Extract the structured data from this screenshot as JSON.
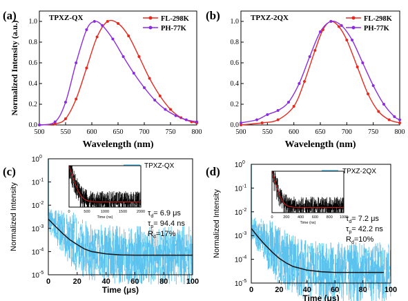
{
  "panels": {
    "a": {
      "tag": "(a)"
    },
    "b": {
      "tag": "(b)"
    },
    "c": {
      "tag": "(c)"
    },
    "d": {
      "tag": "(d)"
    }
  },
  "colors": {
    "fl": "#e8281e",
    "ph": "#8a2be2",
    "decay": "#5cc2ee",
    "fit": "#111111",
    "inset_fit": "#e02020"
  },
  "chart_data": [
    {
      "id": "a",
      "type": "line",
      "title": "TPXZ-QX",
      "xlabel": "Wavelength (nm)",
      "ylabel": "Normalized Intensity (a.u.)",
      "xlim": [
        500,
        800
      ],
      "ylim": [
        0,
        1.1
      ],
      "xticks": [
        "500",
        "550",
        "600",
        "650",
        "700",
        "750",
        "800"
      ],
      "yticks": [
        "0.0",
        "0.2",
        "0.4",
        "0.6",
        "0.8",
        "1.0"
      ],
      "legend_position": "top-right",
      "series": [
        {
          "name": "FL-298K",
          "x": [
            500,
            530,
            550,
            570,
            590,
            610,
            630,
            650,
            670,
            690,
            710,
            730,
            750,
            770,
            790,
            800
          ],
          "values": [
            0.0,
            0.01,
            0.06,
            0.25,
            0.55,
            0.85,
            1.0,
            0.98,
            0.86,
            0.66,
            0.45,
            0.28,
            0.15,
            0.07,
            0.03,
            0.02
          ]
        },
        {
          "name": "PH-77K",
          "x": [
            500,
            530,
            550,
            570,
            590,
            605,
            620,
            640,
            660,
            680,
            700,
            720,
            740,
            760,
            780,
            800
          ],
          "values": [
            0.0,
            0.03,
            0.22,
            0.6,
            0.92,
            1.0,
            0.96,
            0.83,
            0.66,
            0.5,
            0.36,
            0.24,
            0.15,
            0.09,
            0.05,
            0.03
          ]
        }
      ]
    },
    {
      "id": "b",
      "type": "line",
      "title": "TPXZ-2QX",
      "xlabel": "Wavelength (nm)",
      "ylabel": "",
      "xlim": [
        500,
        800
      ],
      "ylim": [
        0,
        1.1
      ],
      "xticks": [
        "500",
        "550",
        "600",
        "650",
        "700",
        "750",
        "800"
      ],
      "yticks": [
        "0.0",
        "0.2",
        "0.4",
        "0.6",
        "0.8",
        "1.0"
      ],
      "legend_position": "top-right",
      "series": [
        {
          "name": "FL-298K",
          "x": [
            500,
            540,
            570,
            600,
            620,
            640,
            655,
            670,
            685,
            700,
            720,
            740,
            760,
            780,
            800
          ],
          "values": [
            0.0,
            0.02,
            0.05,
            0.18,
            0.42,
            0.72,
            0.92,
            1.0,
            0.95,
            0.82,
            0.56,
            0.3,
            0.13,
            0.05,
            0.02
          ]
        },
        {
          "name": "PH-77K",
          "x": [
            500,
            530,
            550,
            570,
            590,
            610,
            630,
            650,
            670,
            690,
            710,
            730,
            750,
            770,
            790,
            800
          ],
          "values": [
            0.02,
            0.05,
            0.1,
            0.14,
            0.22,
            0.4,
            0.66,
            0.9,
            1.0,
            0.96,
            0.82,
            0.6,
            0.38,
            0.2,
            0.08,
            0.05
          ]
        }
      ]
    },
    {
      "id": "c",
      "type": "line",
      "title": "",
      "xlabel": "Time (μs)",
      "ylabel": "Normalized Intensity",
      "xlim": [
        0,
        100
      ],
      "ylog": true,
      "ylim_exp": [
        -5,
        0
      ],
      "xticks": [
        "0",
        "20",
        "40",
        "60",
        "80",
        "100"
      ],
      "yticks": [
        "10",
        "10",
        "10",
        "10",
        "10",
        "10"
      ],
      "ytick_exps": [
        "-5",
        "-4",
        "-3",
        "-2",
        "-1",
        "0"
      ],
      "legend_position": "top-right",
      "series": [
        {
          "name": "TPXZ-QX",
          "decay": {
            "y0": 0.0025,
            "tau": 6.9,
            "floor": 7e-05
          }
        }
      ],
      "fit": {
        "x": [
          0,
          5,
          10,
          15,
          20,
          25,
          30,
          40,
          50,
          60,
          80,
          100
        ],
        "values": [
          0.0025,
          0.0012,
          0.0006,
          0.00032,
          0.0002,
          0.00013,
          0.0001,
          8e-05,
          7.2e-05,
          7e-05,
          7e-05,
          7e-05
        ]
      },
      "annotation": {
        "tau_d": "= 6.9 μs",
        "tau_p": "= 94.4 ns",
        "r_d": "=17%"
      },
      "inset": {
        "xlabel": "Time (ns)",
        "xticks": [
          "0",
          "500",
          "1000",
          "1500",
          "2000"
        ],
        "xlim": [
          0,
          2000
        ],
        "tau_ns": 94.4
      }
    },
    {
      "id": "d",
      "type": "line",
      "title": "",
      "xlabel": "Time (μs)",
      "ylabel": "Normalized Intensity",
      "xlim": [
        0,
        100
      ],
      "ylog": true,
      "ylim_exp": [
        -5,
        0
      ],
      "xticks": [
        "0",
        "20",
        "40",
        "60",
        "80",
        "100"
      ],
      "yticks": [
        "10",
        "10",
        "10",
        "10",
        "10",
        "10"
      ],
      "ytick_exps": [
        "-5",
        "-4",
        "-3",
        "-2",
        "-1",
        "0"
      ],
      "legend_position": "top-right",
      "series": [
        {
          "name": "TPXZ-2QX",
          "decay": {
            "y0": 0.002,
            "tau": 7.2,
            "floor": 2.8e-05
          }
        }
      ],
      "fit": {
        "x": [
          0,
          5,
          10,
          15,
          20,
          25,
          30,
          40,
          50,
          60,
          80,
          95
        ],
        "values": [
          0.002,
          0.00085,
          0.0004,
          0.0002,
          0.00011,
          7e-05,
          5e-05,
          3.5e-05,
          3e-05,
          2.8e-05,
          2.8e-05,
          2.8e-05
        ]
      },
      "annotation": {
        "tau_d": "= 7.2 μs",
        "tau_p": "= 42.2 ns",
        "r_d": "=10%"
      },
      "inset": {
        "xlabel": "Time (ns)",
        "xticks": [
          "0",
          "200",
          "400",
          "600",
          "800",
          "1000"
        ],
        "xlim": [
          0,
          1000
        ],
        "tau_ns": 42.2
      }
    }
  ]
}
